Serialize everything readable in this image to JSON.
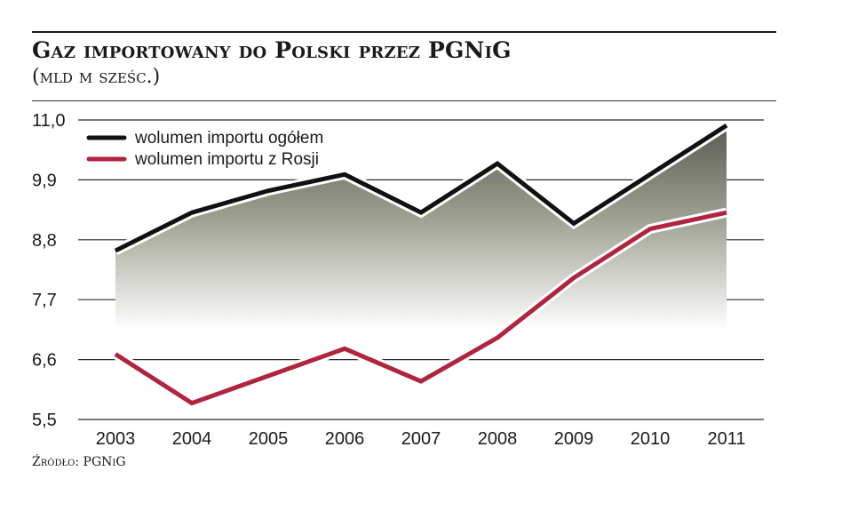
{
  "title": "Gaz importowany do Polski przez PGNiG",
  "subtitle": "(mld m sześc.)",
  "source": "Źródło: PGNiG",
  "chart_data": {
    "type": "line",
    "x": [
      "2003",
      "2004",
      "2005",
      "2006",
      "2007",
      "2008",
      "2009",
      "2010",
      "2011"
    ],
    "y_ticks": [
      "11,0",
      "9,9",
      "8,8",
      "7,7",
      "6,6",
      "5,5"
    ],
    "ylim": [
      5.5,
      11.0
    ],
    "grid": true,
    "legend_position": "top-left",
    "series": [
      {
        "name": "wolumen importu ogółem",
        "color": "#111111",
        "values": [
          8.6,
          9.3,
          9.7,
          10.0,
          9.3,
          10.2,
          9.1,
          10.0,
          10.9
        ]
      },
      {
        "name": "wolumen importu z Rosji",
        "color": "#b0243f",
        "values": [
          6.7,
          5.8,
          6.3,
          6.8,
          6.2,
          7.0,
          8.1,
          9.0,
          9.3
        ]
      }
    ]
  }
}
